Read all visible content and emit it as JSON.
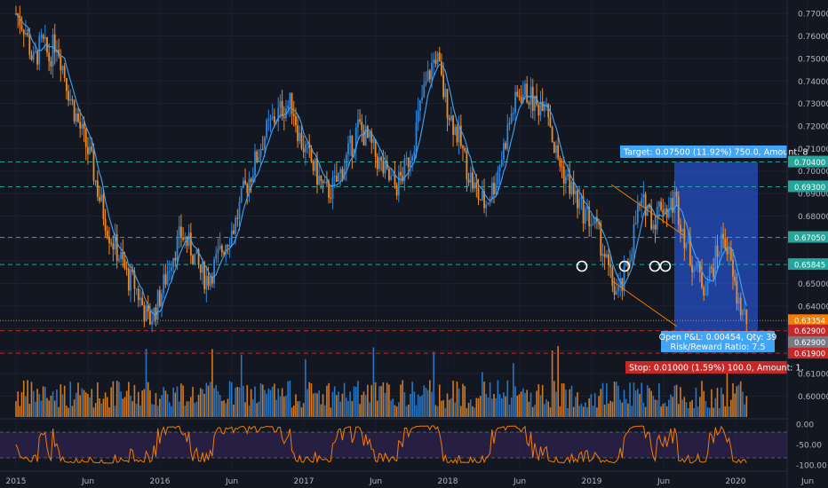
{
  "chart_data": {
    "type": "candlestick",
    "title": "",
    "xlabel": "",
    "ylabel": "",
    "ylim": [
      0.5958,
      0.7744
    ],
    "x_tick_labels": [
      "2015",
      "Jun",
      "2016",
      "Jun",
      "2017",
      "Jun",
      "2018",
      "Jun",
      "2019",
      "Jun",
      "2020",
      "Jun"
    ],
    "y_tick_labels": [
      "0.77000",
      "0.76000",
      "0.75000",
      "0.74000",
      "0.73000",
      "0.72000",
      "0.71000",
      "0.70000",
      "0.69000",
      "0.68000",
      "0.67000",
      "0.66000",
      "0.65000",
      "0.64000",
      "0.63000",
      "0.62000",
      "0.61000",
      "0.60000"
    ],
    "horizontal_levels": [
      {
        "value": 0.704,
        "label": "0.70400",
        "color": "#26a69a",
        "style": "dashed"
      },
      {
        "value": 0.693,
        "label": "0.69300",
        "color": "#26a69a",
        "style": "dashed"
      },
      {
        "value": 0.6705,
        "label": "0.67050",
        "color": "#26a69a",
        "style": "dashed"
      },
      {
        "value": 0.65845,
        "label": "0.65845",
        "color": "#26a69a",
        "style": "dashed"
      },
      {
        "value": 0.63354,
        "label": "0.63354",
        "color": "#f57c00",
        "style": "dotted"
      },
      {
        "value": 0.629,
        "label": "0.62900",
        "color": "#c62828",
        "style": "dashed"
      },
      {
        "value": 0.619,
        "label": "0.61900",
        "color": "#c62828",
        "style": "dashed"
      }
    ],
    "price_label_gray": "0.62900",
    "long_position": {
      "entry": 0.629,
      "target": 0.704,
      "stop": 0.619,
      "target_label": "Target: 0.07500 (11.92%) 750.0, Amount: 8",
      "stop_label": "Stop: 0.01000 (1.59%) 100.0, Amount: 1,",
      "pnl_label": "Open P&L: 0.00454, Qty: 39",
      "rr_label": "Risk/Reward Ratio: 7.5"
    },
    "price_keypoints": [
      [
        2015.0,
        0.77
      ],
      [
        2015.06,
        0.764
      ],
      [
        2015.12,
        0.748
      ],
      [
        2015.18,
        0.757
      ],
      [
        2015.23,
        0.75
      ],
      [
        2015.28,
        0.759
      ],
      [
        2015.33,
        0.745
      ],
      [
        2015.38,
        0.732
      ],
      [
        2015.45,
        0.718
      ],
      [
        2015.52,
        0.705
      ],
      [
        2015.58,
        0.688
      ],
      [
        2015.65,
        0.672
      ],
      [
        2015.72,
        0.662
      ],
      [
        2015.78,
        0.652
      ],
      [
        2015.82,
        0.65
      ],
      [
        2015.88,
        0.64
      ],
      [
        2015.92,
        0.633
      ],
      [
        2015.96,
        0.637
      ],
      [
        2016.02,
        0.648
      ],
      [
        2016.08,
        0.662
      ],
      [
        2016.15,
        0.672
      ],
      [
        2016.22,
        0.665
      ],
      [
        2016.28,
        0.655
      ],
      [
        2016.33,
        0.652
      ],
      [
        2016.38,
        0.658
      ],
      [
        2016.45,
        0.668
      ],
      [
        2016.52,
        0.676
      ],
      [
        2016.58,
        0.69
      ],
      [
        2016.65,
        0.702
      ],
      [
        2016.72,
        0.715
      ],
      [
        2016.78,
        0.722
      ],
      [
        2016.85,
        0.728
      ],
      [
        2016.92,
        0.73
      ],
      [
        2016.97,
        0.715
      ],
      [
        2017.02,
        0.708
      ],
      [
        2017.08,
        0.7
      ],
      [
        2017.15,
        0.69
      ],
      [
        2017.22,
        0.694
      ],
      [
        2017.3,
        0.706
      ],
      [
        2017.38,
        0.72
      ],
      [
        2017.45,
        0.713
      ],
      [
        2017.52,
        0.704
      ],
      [
        2017.58,
        0.697
      ],
      [
        2017.64,
        0.693
      ],
      [
        2017.7,
        0.7
      ],
      [
        2017.76,
        0.712
      ],
      [
        2017.82,
        0.732
      ],
      [
        2017.88,
        0.745
      ],
      [
        2017.92,
        0.752
      ],
      [
        2017.97,
        0.735
      ],
      [
        2018.02,
        0.724
      ],
      [
        2018.08,
        0.714
      ],
      [
        2018.14,
        0.7
      ],
      [
        2018.2,
        0.69
      ],
      [
        2018.26,
        0.685
      ],
      [
        2018.32,
        0.694
      ],
      [
        2018.38,
        0.708
      ],
      [
        2018.44,
        0.725
      ],
      [
        2018.5,
        0.735
      ],
      [
        2018.56,
        0.734
      ],
      [
        2018.62,
        0.728
      ],
      [
        2018.68,
        0.735
      ],
      [
        2018.74,
        0.71
      ],
      [
        2018.8,
        0.7
      ],
      [
        2018.86,
        0.692
      ],
      [
        2018.92,
        0.684
      ],
      [
        2018.97,
        0.68
      ],
      [
        2019.02,
        0.676
      ],
      [
        2019.08,
        0.665
      ],
      [
        2019.13,
        0.652
      ],
      [
        2019.18,
        0.645
      ],
      [
        2019.22,
        0.65
      ],
      [
        2019.27,
        0.665
      ],
      [
        2019.32,
        0.682
      ],
      [
        2019.38,
        0.686
      ],
      [
        2019.43,
        0.677
      ],
      [
        2019.48,
        0.686
      ],
      [
        2019.53,
        0.682
      ],
      [
        2019.58,
        0.688
      ],
      [
        2019.63,
        0.675
      ],
      [
        2019.68,
        0.663
      ],
      [
        2019.73,
        0.656
      ],
      [
        2019.78,
        0.649
      ],
      [
        2019.83,
        0.655
      ],
      [
        2019.88,
        0.665
      ],
      [
        2019.92,
        0.672
      ],
      [
        2019.96,
        0.66
      ],
      [
        2020.0,
        0.646
      ],
      [
        2020.04,
        0.638
      ],
      [
        2020.08,
        0.6335
      ]
    ],
    "oscillator": {
      "y_tick_labels": [
        "0.00",
        "-50.00",
        "-100.00"
      ],
      "ylim": [
        -105,
        5
      ],
      "bands": [
        -20,
        -80
      ]
    }
  }
}
